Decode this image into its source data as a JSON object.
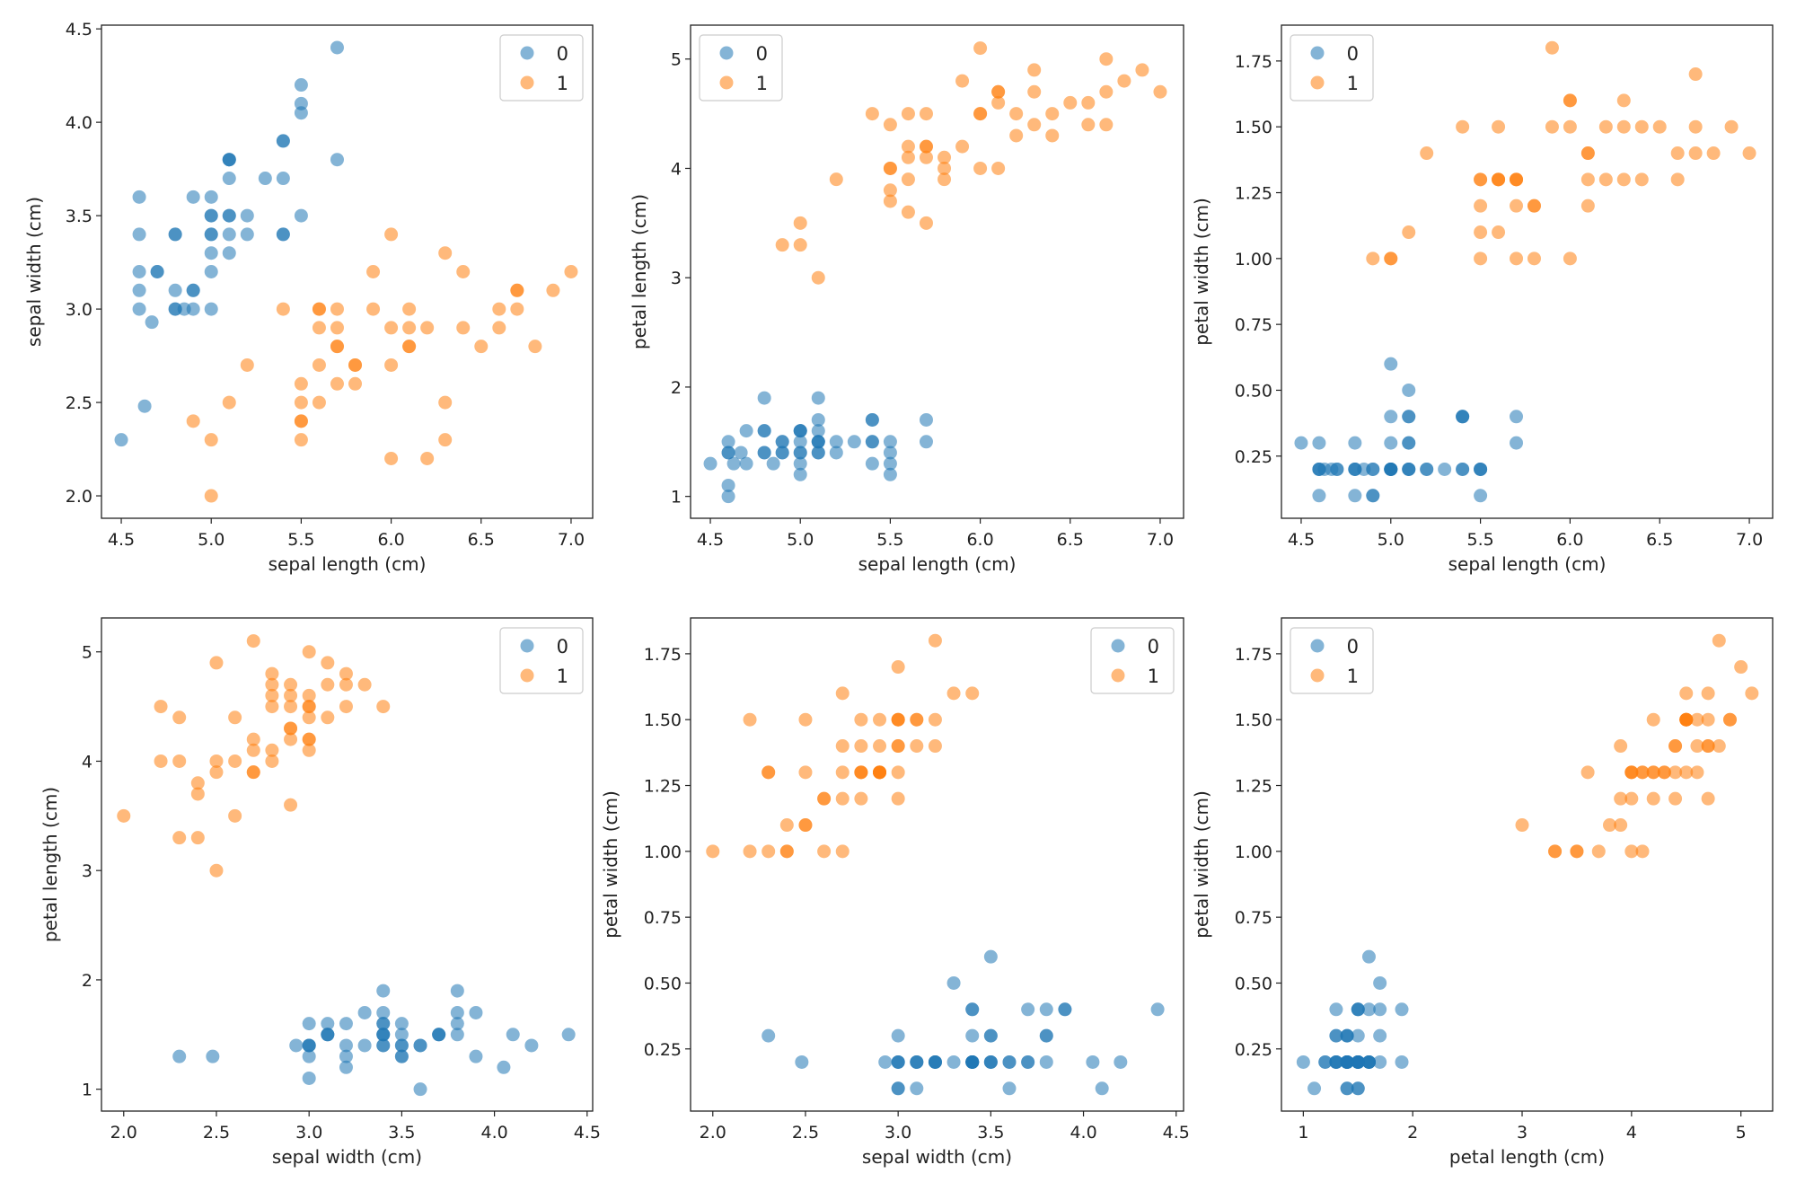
{
  "chart_data": {
    "type": "scatter",
    "colors": {
      "0": "#1f77b4",
      "1": "#ff7f0e"
    },
    "alpha": 0.55,
    "features": [
      "sepal length (cm)",
      "sepal width (cm)",
      "petal length (cm)",
      "petal width (cm)"
    ],
    "series": [
      {
        "name": "0",
        "samples": [
          [
            5.1,
            3.5,
            1.4,
            0.2
          ],
          [
            4.9,
            3.0,
            1.4,
            0.2
          ],
          [
            4.7,
            3.2,
            1.3,
            0.2
          ],
          [
            4.6,
            3.1,
            1.5,
            0.2
          ],
          [
            5.0,
            3.6,
            1.4,
            0.2
          ],
          [
            5.4,
            3.9,
            1.7,
            0.4
          ],
          [
            4.6,
            3.4,
            1.4,
            0.3
          ],
          [
            5.0,
            3.4,
            1.5,
            0.2
          ],
          [
            4.67,
            2.93,
            1.4,
            0.2
          ],
          [
            4.9,
            3.1,
            1.5,
            0.1
          ],
          [
            5.4,
            3.7,
            1.5,
            0.2
          ],
          [
            4.8,
            3.4,
            1.6,
            0.2
          ],
          [
            4.8,
            3.0,
            1.4,
            0.1
          ],
          [
            4.6,
            3.0,
            1.1,
            0.1
          ],
          [
            5.5,
            4.05,
            1.2,
            0.2
          ],
          [
            5.7,
            4.4,
            1.5,
            0.4
          ],
          [
            5.4,
            3.9,
            1.3,
            0.4
          ],
          [
            5.1,
            3.5,
            1.4,
            0.3
          ],
          [
            5.7,
            3.8,
            1.7,
            0.3
          ],
          [
            5.1,
            3.8,
            1.5,
            0.3
          ],
          [
            5.4,
            3.4,
            1.7,
            0.2
          ],
          [
            5.1,
            3.7,
            1.5,
            0.4
          ],
          [
            4.6,
            3.6,
            1.0,
            0.2
          ],
          [
            5.1,
            3.3,
            1.7,
            0.5
          ],
          [
            4.8,
            3.4,
            1.9,
            0.2
          ],
          [
            5.0,
            3.0,
            1.6,
            0.2
          ],
          [
            5.0,
            3.4,
            1.6,
            0.4
          ],
          [
            5.2,
            3.5,
            1.5,
            0.2
          ],
          [
            5.2,
            3.4,
            1.4,
            0.2
          ],
          [
            4.7,
            3.2,
            1.6,
            0.2
          ],
          [
            4.8,
            3.1,
            1.6,
            0.2
          ],
          [
            5.4,
            3.4,
            1.5,
            0.4
          ],
          [
            5.5,
            4.1,
            1.5,
            0.1
          ],
          [
            5.5,
            4.2,
            1.4,
            0.2
          ],
          [
            4.9,
            3.1,
            1.5,
            0.2
          ],
          [
            5.0,
            3.2,
            1.2,
            0.2
          ],
          [
            5.5,
            3.5,
            1.3,
            0.2
          ],
          [
            4.9,
            3.6,
            1.4,
            0.1
          ],
          [
            4.85,
            3.0,
            1.3,
            0.2
          ],
          [
            5.1,
            3.4,
            1.5,
            0.2
          ],
          [
            5.0,
            3.5,
            1.3,
            0.3
          ],
          [
            4.5,
            2.3,
            1.3,
            0.3
          ],
          [
            4.63,
            2.48,
            1.3,
            0.2
          ],
          [
            5.0,
            3.5,
            1.6,
            0.6
          ],
          [
            5.1,
            3.8,
            1.9,
            0.4
          ],
          [
            4.8,
            3.0,
            1.4,
            0.3
          ],
          [
            5.1,
            3.8,
            1.6,
            0.2
          ],
          [
            4.6,
            3.2,
            1.4,
            0.2
          ],
          [
            5.3,
            3.7,
            1.5,
            0.2
          ],
          [
            5.0,
            3.3,
            1.4,
            0.2
          ]
        ]
      },
      {
        "name": "1",
        "samples": [
          [
            7.0,
            3.2,
            4.7,
            1.4
          ],
          [
            6.4,
            3.2,
            4.5,
            1.5
          ],
          [
            6.9,
            3.1,
            4.9,
            1.5
          ],
          [
            5.5,
            2.3,
            4.0,
            1.3
          ],
          [
            6.5,
            2.8,
            4.6,
            1.5
          ],
          [
            5.7,
            2.8,
            4.5,
            1.3
          ],
          [
            6.3,
            3.3,
            4.7,
            1.6
          ],
          [
            4.9,
            2.4,
            3.3,
            1.0
          ],
          [
            6.6,
            2.9,
            4.6,
            1.3
          ],
          [
            5.2,
            2.7,
            3.9,
            1.4
          ],
          [
            5.0,
            2.0,
            3.5,
            1.0
          ],
          [
            5.9,
            3.0,
            4.2,
            1.5
          ],
          [
            6.0,
            2.2,
            4.0,
            1.0
          ],
          [
            6.1,
            2.9,
            4.7,
            1.4
          ],
          [
            5.6,
            2.9,
            3.6,
            1.3
          ],
          [
            6.7,
            3.1,
            4.4,
            1.4
          ],
          [
            5.6,
            3.0,
            4.5,
            1.5
          ],
          [
            5.8,
            2.7,
            4.1,
            1.0
          ],
          [
            6.2,
            2.2,
            4.5,
            1.5
          ],
          [
            5.6,
            2.5,
            3.9,
            1.1
          ],
          [
            5.9,
            3.2,
            4.8,
            1.8
          ],
          [
            6.1,
            2.8,
            4.0,
            1.3
          ],
          [
            6.3,
            2.5,
            4.9,
            1.5
          ],
          [
            6.1,
            2.8,
            4.7,
            1.2
          ],
          [
            6.4,
            2.9,
            4.3,
            1.3
          ],
          [
            6.6,
            3.0,
            4.4,
            1.4
          ],
          [
            6.8,
            2.8,
            4.8,
            1.4
          ],
          [
            6.7,
            3.0,
            5.0,
            1.7
          ],
          [
            6.0,
            2.9,
            4.5,
            1.5
          ],
          [
            5.7,
            2.6,
            3.5,
            1.0
          ],
          [
            5.5,
            2.4,
            3.8,
            1.1
          ],
          [
            5.5,
            2.4,
            3.7,
            1.0
          ],
          [
            5.8,
            2.7,
            3.9,
            1.2
          ],
          [
            6.0,
            2.7,
            5.1,
            1.6
          ],
          [
            5.4,
            3.0,
            4.5,
            1.5
          ],
          [
            6.0,
            3.4,
            4.5,
            1.6
          ],
          [
            6.7,
            3.1,
            4.7,
            1.5
          ],
          [
            6.3,
            2.3,
            4.4,
            1.3
          ],
          [
            5.6,
            3.0,
            4.1,
            1.3
          ],
          [
            5.5,
            2.5,
            4.0,
            1.3
          ],
          [
            5.5,
            2.6,
            4.4,
            1.2
          ],
          [
            6.1,
            3.0,
            4.6,
            1.4
          ],
          [
            5.8,
            2.6,
            4.0,
            1.2
          ],
          [
            5.0,
            2.3,
            3.3,
            1.0
          ],
          [
            5.6,
            2.7,
            4.2,
            1.3
          ],
          [
            5.7,
            3.0,
            4.2,
            1.2
          ],
          [
            5.7,
            2.9,
            4.2,
            1.3
          ],
          [
            6.2,
            2.9,
            4.3,
            1.3
          ],
          [
            5.1,
            2.5,
            3.0,
            1.1
          ],
          [
            5.7,
            2.8,
            4.1,
            1.3
          ]
        ]
      }
    ],
    "subplots": [
      {
        "xlabel": "sepal length (cm)",
        "ylabel": "sepal width (cm)",
        "x_feature": 0,
        "y_feature": 1,
        "xlim": [
          4.39,
          7.12
        ],
        "ylim": [
          1.88,
          4.52
        ],
        "xticks": [
          "4.5",
          "5.0",
          "5.5",
          "6.0",
          "6.5",
          "7.0"
        ],
        "yticks": [
          "2.0",
          "2.5",
          "3.0",
          "3.5",
          "4.0",
          "4.5"
        ],
        "legend": "upper right"
      },
      {
        "xlabel": "sepal length (cm)",
        "ylabel": "petal length (cm)",
        "x_feature": 0,
        "y_feature": 2,
        "xlim": [
          4.39,
          7.13
        ],
        "ylim": [
          0.8,
          5.31
        ],
        "xticks": [
          "4.5",
          "5.0",
          "5.5",
          "6.0",
          "6.5",
          "7.0"
        ],
        "yticks": [
          "1",
          "2",
          "3",
          "4",
          "5"
        ],
        "legend": "upper left"
      },
      {
        "xlabel": "sepal length (cm)",
        "ylabel": "petal width (cm)",
        "x_feature": 0,
        "y_feature": 3,
        "xlim": [
          4.39,
          7.13
        ],
        "ylim": [
          0.014,
          1.886
        ],
        "xticks": [
          "4.5",
          "5.0",
          "5.5",
          "6.0",
          "6.5",
          "7.0"
        ],
        "yticks": [
          "0.25",
          "0.50",
          "0.75",
          "1.00",
          "1.25",
          "1.50",
          "1.75"
        ],
        "legend": "upper left"
      },
      {
        "xlabel": "sepal width (cm)",
        "ylabel": "petal length (cm)",
        "x_feature": 1,
        "y_feature": 2,
        "xlim": [
          1.88,
          4.53
        ],
        "ylim": [
          0.8,
          5.31
        ],
        "xticks": [
          "2.0",
          "2.5",
          "3.0",
          "3.5",
          "4.0",
          "4.5"
        ],
        "yticks": [
          "1",
          "2",
          "3",
          "4",
          "5"
        ],
        "legend": "upper right"
      },
      {
        "xlabel": "sepal width (cm)",
        "ylabel": "petal width (cm)",
        "x_feature": 1,
        "y_feature": 3,
        "xlim": [
          1.88,
          4.54
        ],
        "ylim": [
          0.014,
          1.886
        ],
        "xticks": [
          "2.0",
          "2.5",
          "3.0",
          "3.5",
          "4.0",
          "4.5"
        ],
        "yticks": [
          "0.25",
          "0.50",
          "0.75",
          "1.00",
          "1.25",
          "1.50",
          "1.75"
        ],
        "legend": "upper right"
      },
      {
        "xlabel": "petal length (cm)",
        "ylabel": "petal width (cm)",
        "x_feature": 2,
        "y_feature": 3,
        "xlim": [
          0.8,
          5.29
        ],
        "ylim": [
          0.014,
          1.886
        ],
        "xticks": [
          "1",
          "2",
          "3",
          "4",
          "5"
        ],
        "yticks": [
          "0.25",
          "0.50",
          "0.75",
          "1.00",
          "1.25",
          "1.50",
          "1.75"
        ],
        "legend": "upper left"
      }
    ]
  }
}
